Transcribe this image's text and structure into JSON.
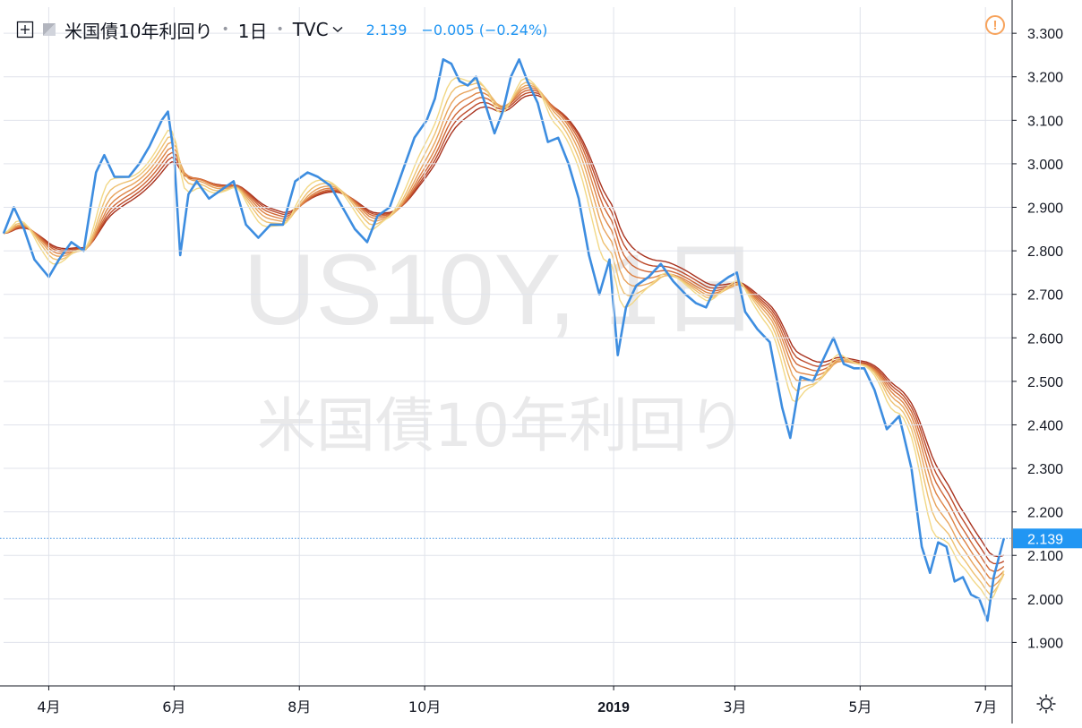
{
  "header": {
    "symbol": "米国債10年利回り",
    "interval": "1日",
    "exchange": "TVC",
    "last_price": "2.139",
    "change": "−0.005 (−0.24%)",
    "icons": [
      "plus-square-icon",
      "flag-icon",
      "chevron-down-icon",
      "warning-icon",
      "gear-icon"
    ]
  },
  "watermark": {
    "line1": "US10Y, 1日",
    "line2": "米国債10年利回り"
  },
  "price_label": "2.139",
  "colors": {
    "price_line": "#3d8de0",
    "grid": "#e0e3eb",
    "ribbon": [
      "#a8321e",
      "#bd4a2a",
      "#cf6636",
      "#de8446",
      "#e8a35c",
      "#eec070",
      "#f2d886"
    ],
    "watermark": "#e9e9ea",
    "warning": "#f7a35c"
  },
  "chart_data": {
    "type": "line",
    "title": "米国債10年利回り",
    "y_axis_position": "right",
    "ylim": [
      1.8,
      3.36
    ],
    "xlim": [
      "2018-03-10",
      "2019-07-14"
    ],
    "y_ticks": [
      "3.300",
      "3.200",
      "3.100",
      "3.000",
      "2.900",
      "2.800",
      "2.700",
      "2.600",
      "2.500",
      "2.400",
      "2.300",
      "2.200",
      "2.100",
      "2.000",
      "1.900"
    ],
    "x_ticks": [
      {
        "label": "4月",
        "date": "2018-04-01"
      },
      {
        "label": "6月",
        "date": "2018-06-01"
      },
      {
        "label": "8月",
        "date": "2018-08-01"
      },
      {
        "label": "10月",
        "date": "2018-10-01"
      },
      {
        "label": "2019",
        "date": "2019-01-01"
      },
      {
        "label": "3月",
        "date": "2019-03-01"
      },
      {
        "label": "5月",
        "date": "2019-05-01"
      },
      {
        "label": "7月",
        "date": "2019-07-01"
      }
    ],
    "last_value": 2.139,
    "series": [
      {
        "values": [
          [
            "2018-03-10",
            2.84
          ],
          [
            "2018-03-15",
            2.9
          ],
          [
            "2018-03-20",
            2.85
          ],
          [
            "2018-03-25",
            2.78
          ],
          [
            "2018-04-01",
            2.74
          ],
          [
            "2018-04-06",
            2.78
          ],
          [
            "2018-04-12",
            2.82
          ],
          [
            "2018-04-18",
            2.8
          ],
          [
            "2018-04-24",
            2.98
          ],
          [
            "2018-04-28",
            3.02
          ],
          [
            "2018-05-03",
            2.97
          ],
          [
            "2018-05-10",
            2.97
          ],
          [
            "2018-05-15",
            3.0
          ],
          [
            "2018-05-20",
            3.04
          ],
          [
            "2018-05-26",
            3.1
          ],
          [
            "2018-05-29",
            3.12
          ],
          [
            "2018-06-01",
            3.02
          ],
          [
            "2018-06-04",
            2.79
          ],
          [
            "2018-06-08",
            2.93
          ],
          [
            "2018-06-12",
            2.96
          ],
          [
            "2018-06-18",
            2.92
          ],
          [
            "2018-06-24",
            2.94
          ],
          [
            "2018-06-30",
            2.96
          ],
          [
            "2018-07-06",
            2.86
          ],
          [
            "2018-07-12",
            2.83
          ],
          [
            "2018-07-18",
            2.86
          ],
          [
            "2018-07-24",
            2.86
          ],
          [
            "2018-07-30",
            2.96
          ],
          [
            "2018-08-05",
            2.98
          ],
          [
            "2018-08-10",
            2.97
          ],
          [
            "2018-08-16",
            2.95
          ],
          [
            "2018-08-22",
            2.9
          ],
          [
            "2018-08-28",
            2.85
          ],
          [
            "2018-09-03",
            2.82
          ],
          [
            "2018-09-08",
            2.88
          ],
          [
            "2018-09-14",
            2.9
          ],
          [
            "2018-09-20",
            2.98
          ],
          [
            "2018-09-26",
            3.06
          ],
          [
            "2018-10-02",
            3.1
          ],
          [
            "2018-10-06",
            3.15
          ],
          [
            "2018-10-10",
            3.24
          ],
          [
            "2018-10-14",
            3.23
          ],
          [
            "2018-10-18",
            3.19
          ],
          [
            "2018-10-22",
            3.18
          ],
          [
            "2018-10-26",
            3.2
          ],
          [
            "2018-10-31",
            3.13
          ],
          [
            "2018-11-04",
            3.07
          ],
          [
            "2018-11-08",
            3.12
          ],
          [
            "2018-11-12",
            3.2
          ],
          [
            "2018-11-16",
            3.24
          ],
          [
            "2018-11-20",
            3.19
          ],
          [
            "2018-11-25",
            3.14
          ],
          [
            "2018-11-30",
            3.05
          ],
          [
            "2018-12-05",
            3.06
          ],
          [
            "2018-12-10",
            3.0
          ],
          [
            "2018-12-15",
            2.92
          ],
          [
            "2018-12-20",
            2.79
          ],
          [
            "2018-12-25",
            2.7
          ],
          [
            "2018-12-30",
            2.78
          ],
          [
            "2019-01-03",
            2.56
          ],
          [
            "2019-01-07",
            2.67
          ],
          [
            "2019-01-12",
            2.72
          ],
          [
            "2019-01-18",
            2.74
          ],
          [
            "2019-01-24",
            2.77
          ],
          [
            "2019-01-30",
            2.73
          ],
          [
            "2019-02-05",
            2.7
          ],
          [
            "2019-02-10",
            2.68
          ],
          [
            "2019-02-15",
            2.67
          ],
          [
            "2019-02-20",
            2.72
          ],
          [
            "2019-02-26",
            2.74
          ],
          [
            "2019-03-02",
            2.75
          ],
          [
            "2019-03-06",
            2.66
          ],
          [
            "2019-03-12",
            2.62
          ],
          [
            "2019-03-18",
            2.59
          ],
          [
            "2019-03-24",
            2.44
          ],
          [
            "2019-03-28",
            2.37
          ],
          [
            "2019-04-02",
            2.51
          ],
          [
            "2019-04-08",
            2.5
          ],
          [
            "2019-04-13",
            2.55
          ],
          [
            "2019-04-18",
            2.6
          ],
          [
            "2019-04-23",
            2.54
          ],
          [
            "2019-04-28",
            2.53
          ],
          [
            "2019-05-03",
            2.53
          ],
          [
            "2019-05-08",
            2.48
          ],
          [
            "2019-05-14",
            2.39
          ],
          [
            "2019-05-20",
            2.42
          ],
          [
            "2019-05-26",
            2.3
          ],
          [
            "2019-05-31",
            2.12
          ],
          [
            "2019-06-04",
            2.06
          ],
          [
            "2019-06-08",
            2.13
          ],
          [
            "2019-06-12",
            2.12
          ],
          [
            "2019-06-16",
            2.04
          ],
          [
            "2019-06-20",
            2.05
          ],
          [
            "2019-06-24",
            2.01
          ],
          [
            "2019-06-28",
            2.0
          ],
          [
            "2019-07-02",
            1.95
          ],
          [
            "2019-07-05",
            2.05
          ],
          [
            "2019-07-10",
            2.139
          ]
        ]
      }
    ]
  }
}
